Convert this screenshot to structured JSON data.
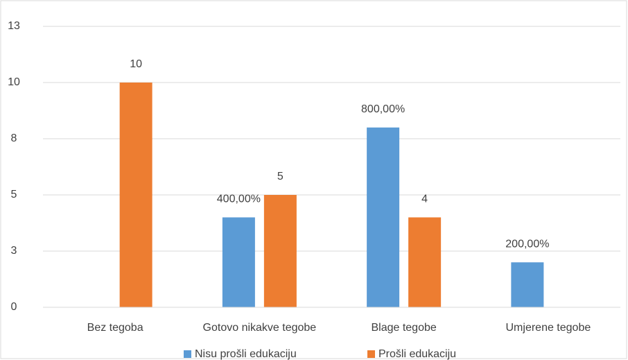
{
  "chart_data": {
    "type": "bar",
    "categories": [
      "Bez tegoba",
      "Gotovo nikakve tegobe",
      "Blage tegobe",
      "Umjerene tegobe"
    ],
    "series": [
      {
        "name": "Nisu prošli edukaciju",
        "color": "#5b9bd5",
        "values": [
          null,
          4,
          8,
          2
        ],
        "value_labels": [
          null,
          "400,00%",
          "800,00%",
          "200,00%"
        ]
      },
      {
        "name": "Prošli edukaciju",
        "color": "#ed7d31",
        "values": [
          10,
          5,
          4,
          null
        ]
      }
    ],
    "ylim": [
      0,
      12.5
    ],
    "yticks": [
      0,
      {
        "value": 2.5,
        "label": "3"
      },
      5,
      {
        "value": 7.5,
        "label": "8"
      },
      10,
      {
        "value": 12.5,
        "label": "13"
      }
    ],
    "grid": true,
    "legend": "bottom"
  }
}
